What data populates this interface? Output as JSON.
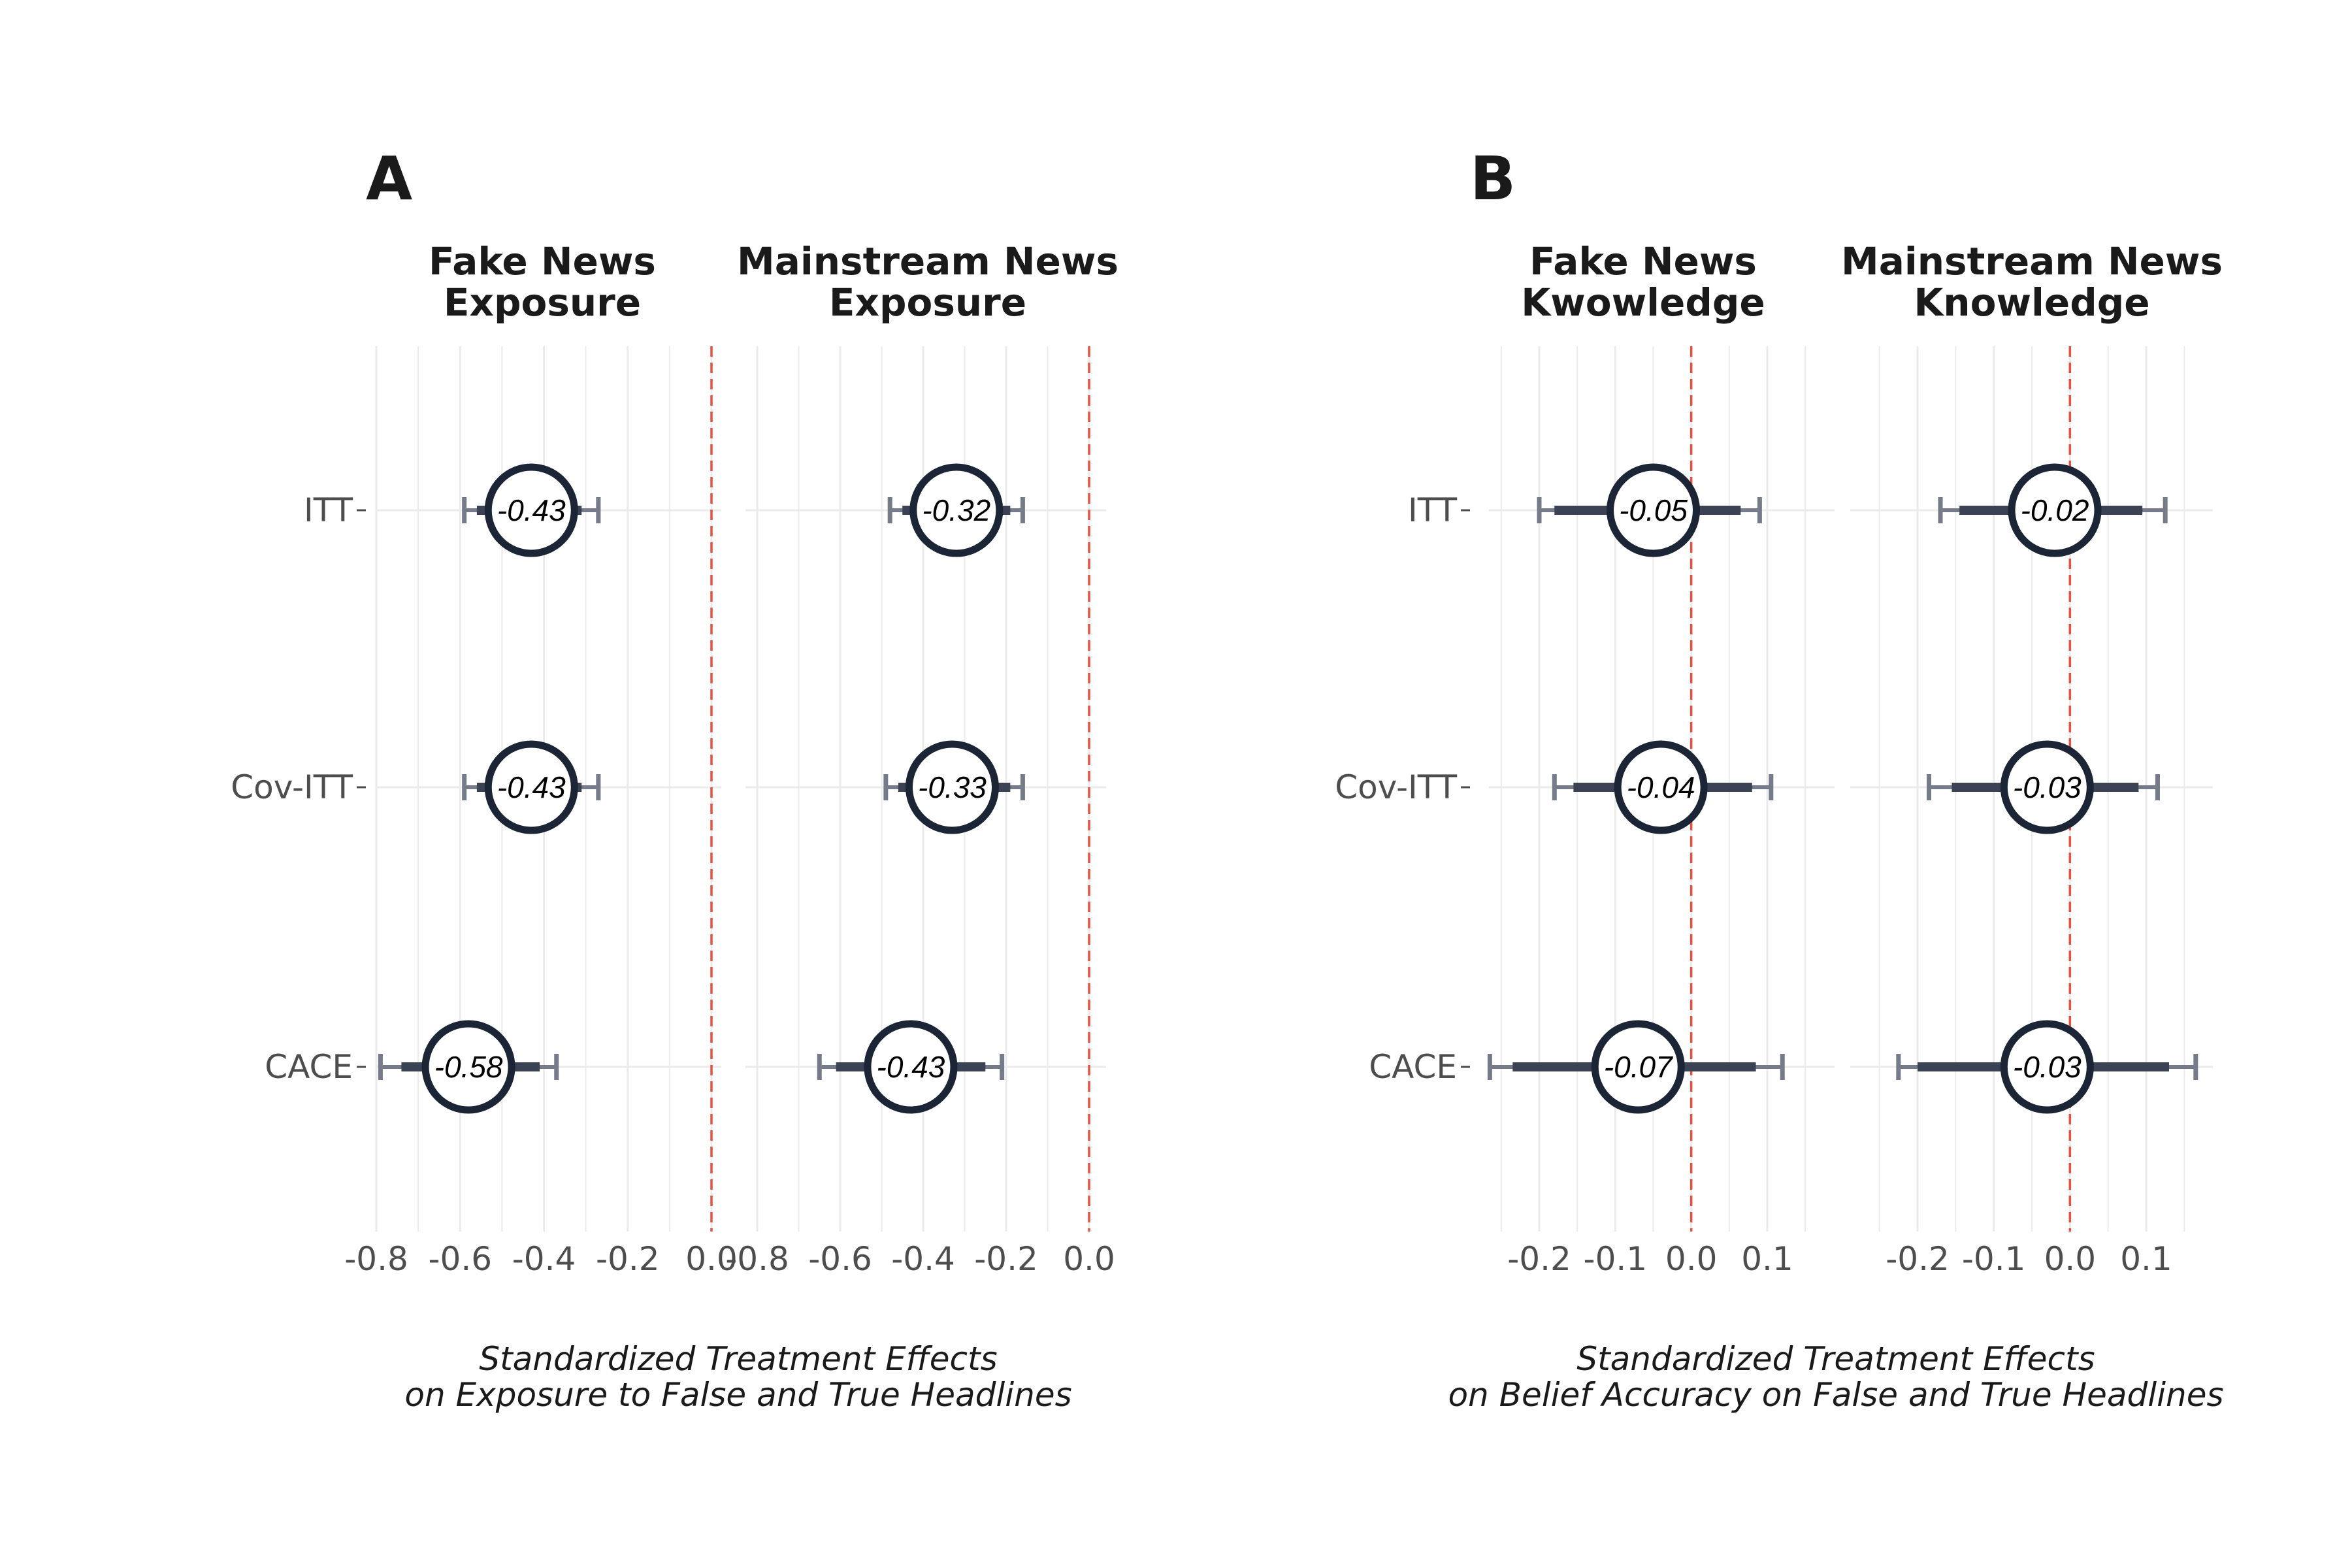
{
  "colors": {
    "point_stroke": "#1c2536",
    "ci_inner": "#3b4254",
    "ci_outer": "#767b89",
    "zero_line": "#e8513f",
    "grid": "#ebebeb"
  },
  "chart_data": [
    {
      "type": "forest",
      "panel": "A",
      "title": "Fake News\nExposure",
      "categories": [
        "ITT",
        "Cov-ITT",
        "CACE"
      ],
      "xlim": [
        -0.8,
        0.0
      ],
      "xticks": [
        -0.8,
        -0.6,
        -0.4,
        -0.2,
        0.0
      ],
      "tick_labels": [
        "-0.8",
        "-0.6",
        "-0.4",
        "-0.2",
        "0.0"
      ],
      "xlabel": "Standardized Treatment Effects\non Exposure to False and True Headlines",
      "reference_line": 0,
      "estimates": [
        -0.43,
        -0.43,
        -0.58
      ],
      "labels": [
        "-0.43",
        "-0.43",
        "-0.58"
      ],
      "ci_inner": [
        [
          -0.56,
          -0.31
        ],
        [
          -0.56,
          -0.31
        ],
        [
          -0.74,
          -0.41
        ]
      ],
      "ci_outer": [
        [
          -0.59,
          -0.27
        ],
        [
          -0.59,
          -0.27
        ],
        [
          -0.79,
          -0.37
        ]
      ]
    },
    {
      "type": "forest",
      "panel": "",
      "title": "Mainstream News\nExposure",
      "categories": [
        "ITT",
        "Cov-ITT",
        "CACE"
      ],
      "xlim": [
        -0.8,
        0.0
      ],
      "xticks": [
        -0.8,
        -0.6,
        -0.4,
        -0.2,
        0.0
      ],
      "tick_labels": [
        "-0.8",
        "-0.6",
        "-0.4",
        "-0.2",
        "0.0"
      ],
      "xlabel": "",
      "reference_line": 0,
      "estimates": [
        -0.32,
        -0.33,
        -0.43
      ],
      "labels": [
        "-0.32",
        "-0.33",
        "-0.43"
      ],
      "ci_inner": [
        [
          -0.45,
          -0.19
        ],
        [
          -0.46,
          -0.19
        ],
        [
          -0.61,
          -0.25
        ]
      ],
      "ci_outer": [
        [
          -0.48,
          -0.16
        ],
        [
          -0.49,
          -0.16
        ],
        [
          -0.65,
          -0.21
        ]
      ]
    },
    {
      "type": "forest",
      "panel": "B",
      "title": "Fake News\nKwowledge",
      "categories": [
        "ITT",
        "Cov-ITT",
        "CACE"
      ],
      "xlim": [
        -0.2,
        0.1
      ],
      "xticks": [
        -0.2,
        -0.1,
        0.0,
        0.1
      ],
      "tick_labels": [
        "-0.2",
        "-0.1",
        "0.0",
        "0.1"
      ],
      "xlabel": "Standardized Treatment Effects\non Belief Accuracy on False and True Headlines",
      "reference_line": 0,
      "estimates": [
        -0.05,
        -0.04,
        -0.07
      ],
      "labels": [
        "-0.05",
        "-0.04",
        "-0.07"
      ],
      "ci_inner": [
        [
          -0.18,
          0.065
        ],
        [
          -0.155,
          0.08
        ],
        [
          -0.235,
          0.085
        ]
      ],
      "ci_outer": [
        [
          -0.2,
          0.09
        ],
        [
          -0.18,
          0.105
        ],
        [
          -0.265,
          0.12
        ]
      ]
    },
    {
      "type": "forest",
      "panel": "",
      "title": "Mainstream News\nKnowledge",
      "categories": [
        "ITT",
        "Cov-ITT",
        "CACE"
      ],
      "xlim": [
        -0.2,
        0.1
      ],
      "xticks": [
        -0.2,
        -0.1,
        0.0,
        0.1
      ],
      "tick_labels": [
        "-0.2",
        "-0.1",
        "0.0",
        "0.1"
      ],
      "xlabel": "",
      "reference_line": 0,
      "estimates": [
        -0.02,
        -0.03,
        -0.03
      ],
      "labels": [
        "-0.02",
        "-0.03",
        "-0.03"
      ],
      "ci_inner": [
        [
          -0.145,
          0.095
        ],
        [
          -0.155,
          0.09
        ],
        [
          -0.2,
          0.13
        ]
      ],
      "ci_outer": [
        [
          -0.17,
          0.125
        ],
        [
          -0.185,
          0.115
        ],
        [
          -0.225,
          0.165
        ]
      ]
    }
  ]
}
